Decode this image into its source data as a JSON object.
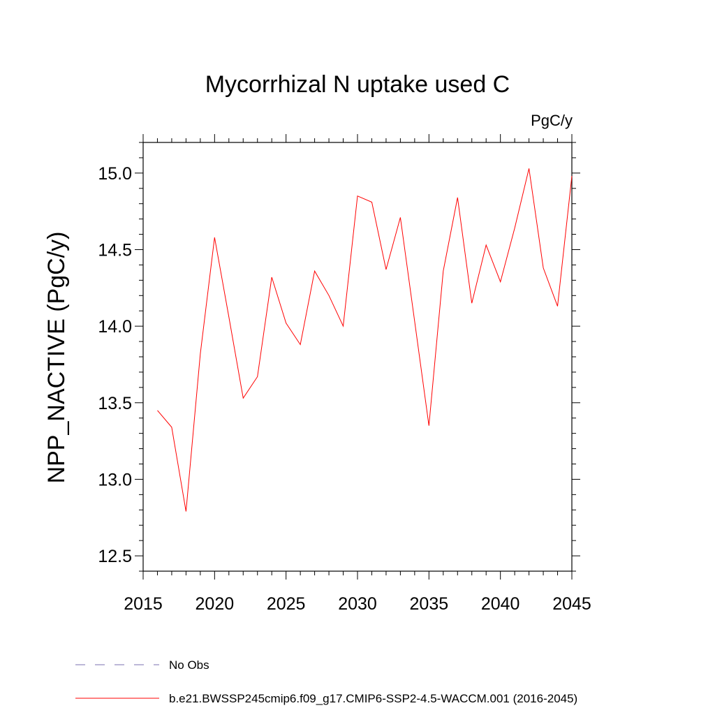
{
  "chart_data": {
    "type": "line",
    "title": "Mycorrhizal N uptake used C",
    "units_label": "PgC/y",
    "ylabel": "NPP_NACTIVE  (PgC/y)",
    "xlabel": "",
    "xlim": [
      2015,
      2045
    ],
    "ylim": [
      12.4,
      15.2
    ],
    "x_ticks": [
      2015,
      2020,
      2025,
      2030,
      2035,
      2040,
      2045
    ],
    "x_tick_labels": [
      "2015",
      "2020",
      "2025",
      "2030",
      "2035",
      "2040",
      "2045"
    ],
    "y_ticks": [
      12.5,
      13.0,
      13.5,
      14.0,
      14.5,
      15.0
    ],
    "y_tick_labels": [
      "12.5",
      "13.0",
      "13.5",
      "14.0",
      "14.5",
      "15.0"
    ],
    "grid": false,
    "legend_placement": "bottom",
    "series": [
      {
        "name": "b.e21.BWSSP245cmip6.f09_g17.CMIP6-SSP2-4.5-WACCM.001 (2016-2045)",
        "color": "#ff0000",
        "style": "solid",
        "x": [
          2016,
          2017,
          2018,
          2019,
          2020,
          2021,
          2022,
          2023,
          2024,
          2025,
          2026,
          2027,
          2028,
          2029,
          2030,
          2031,
          2032,
          2033,
          2034,
          2035,
          2036,
          2037,
          2038,
          2039,
          2040,
          2041,
          2042,
          2043,
          2044,
          2045
        ],
        "y": [
          13.45,
          13.34,
          12.79,
          13.82,
          14.58,
          14.06,
          13.53,
          13.67,
          14.32,
          14.02,
          13.88,
          14.36,
          14.2,
          14.0,
          14.85,
          14.81,
          14.37,
          14.71,
          14.03,
          13.35,
          14.36,
          14.84,
          14.15,
          14.53,
          14.29,
          14.64,
          15.03,
          14.38,
          14.13,
          14.98
        ]
      },
      {
        "name": "No Obs",
        "color": "#7a6fb0",
        "style": "dashed",
        "x": [],
        "y": []
      }
    ]
  }
}
